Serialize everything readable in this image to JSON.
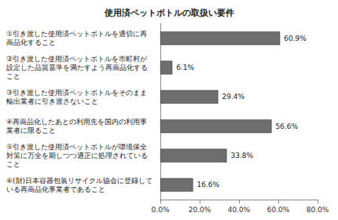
{
  "chart_data": {
    "type": "bar",
    "orientation": "horizontal",
    "title": "使用済ペットボトルの取扱い要件",
    "categories": [
      "①引き渡した使用済ペットボトルを適切に再商品化すること",
      "②引き渡した使用済ペットボトルを市町村が設定した品質基準を満たすよう再商品化すること",
      "③引き渡した使用済ペットボトルをそのまま輸出業者に引き渡さないこと",
      "④再商品化したあとの利用先を国内の利用事業者に限ること",
      "⑤引き渡した使用済ペットボトルが環境保全対策に万全を期しつつ適正に処理されていること",
      "⑥(財)日本容器包装リサイクル協会に登録している再商品化事業者であること"
    ],
    "values": [
      60.9,
      6.1,
      29.4,
      56.6,
      33.8,
      16.6
    ],
    "value_labels": [
      "60.9%",
      "6.1%",
      "29.4%",
      "56.6%",
      "33.8%",
      "16.6%"
    ],
    "data_labels": true,
    "color": "#6e6e6e",
    "xlim": [
      0,
      80
    ],
    "xticks": [
      {
        "value": 0,
        "label": "0.0%"
      },
      {
        "value": 20,
        "label": "20.0%"
      },
      {
        "value": 40,
        "label": "40.0%"
      },
      {
        "value": 60,
        "label": "60.0%"
      },
      {
        "value": 80,
        "label": "80.0%"
      }
    ],
    "grid": false
  }
}
